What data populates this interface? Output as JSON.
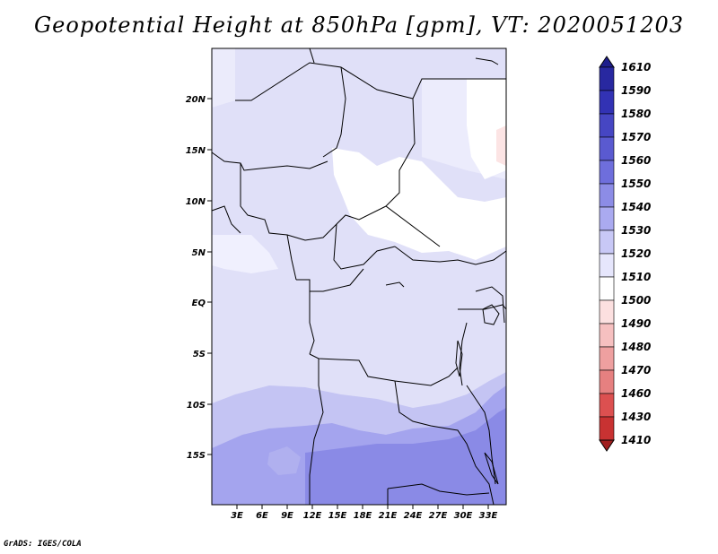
{
  "title": "Geopotential Height at 850hPa [gpm], VT: 2020051203",
  "footer": "GrADS: IGES/COLA",
  "map": {
    "lat_labels": [
      "20N",
      "15N",
      "10N",
      "5N",
      "EQ",
      "5S",
      "10S",
      "15S"
    ],
    "lon_labels": [
      "3E",
      "6E",
      "9E",
      "12E",
      "15E",
      "18E",
      "21E",
      "24E",
      "27E",
      "30E",
      "33E"
    ]
  },
  "colorbar": {
    "labels": [
      "1610",
      "1590",
      "1580",
      "1570",
      "1560",
      "1550",
      "1540",
      "1530",
      "1520",
      "1510",
      "1500",
      "1490",
      "1480",
      "1470",
      "1460",
      "1430",
      "1410"
    ],
    "colors": [
      "#1e1e8c",
      "#2828a0",
      "#3232b4",
      "#4646c3",
      "#5a5ad0",
      "#6e6edc",
      "#8c8ce6",
      "#aaaaf0",
      "#c8c8f6",
      "#e6e6fc",
      "#ffffff",
      "#fce0e0",
      "#f6c0c0",
      "#eea0a0",
      "#e68080",
      "#dc5050",
      "#c83232",
      "#a01e1e"
    ]
  }
}
